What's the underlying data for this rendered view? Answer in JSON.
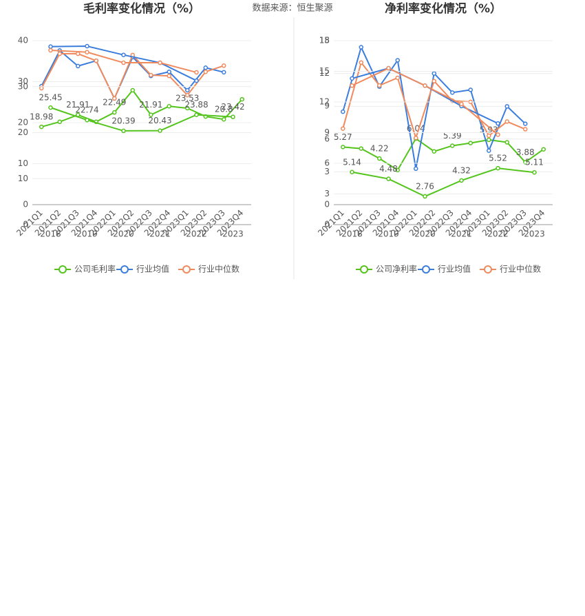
{
  "source": "数据来源：恒生聚源",
  "chart_data": [
    {
      "type": "line",
      "title": "毛利率变化情况（%）",
      "layers": [
        {
          "categories": [
            "2021Q1",
            "2021Q2",
            "2021Q3",
            "2021Q4",
            "2022Q1",
            "2022Q2",
            "2022Q3",
            "2022Q4",
            "2023Q1",
            "2023Q2",
            "2023Q3",
            "2023Q4"
          ],
          "ylim": [
            0,
            40
          ],
          "yticks": [
            0,
            10,
            20,
            30
          ],
          "series": [
            {
              "name": "公司毛利率",
              "color": "#52c41a",
              "values": [
                18.98,
                20.2,
                21.91,
                20.2,
                22.49,
                27.9,
                21.91,
                24.0,
                23.53,
                21.5,
                20.8,
                25.7
              ]
            },
            {
              "name": "行业均值",
              "color": "#3b7ddd",
              "values": [
                28.9,
                37.6,
                33.8,
                35.1,
                25.9,
                36.0,
                31.4,
                32.4,
                27.9,
                33.4,
                32.3,
                null
              ]
            },
            {
              "name": "行业中位数",
              "color": "#f08a5d",
              "values": [
                28.4,
                36.8,
                36.8,
                35.1,
                25.9,
                36.5,
                31.6,
                31.4,
                26.7,
                32.4,
                33.9,
                null
              ]
            }
          ]
        },
        {
          "categories": [
            "2018",
            "2019",
            "2020",
            "2021",
            "2022",
            "2023"
          ],
          "ylim": [
            0,
            40
          ],
          "yticks": [
            0,
            10,
            20,
            30,
            40
          ],
          "series": [
            {
              "color": "#52c41a",
              "values": [
                25.45,
                22.74,
                20.39,
                20.43,
                23.88,
                23.42
              ]
            },
            {
              "color": "#3b7ddd",
              "values": [
                38.7,
                38.8,
                36.9,
                35.2,
                31.3,
                null
              ]
            },
            {
              "color": "#f08a5d",
              "values": [
                37.9,
                37.5,
                35.2,
                35.2,
                33.1,
                null
              ]
            }
          ]
        }
      ]
    },
    {
      "type": "line",
      "title": "净利率变化情况（%）",
      "layers": [
        {
          "categories": [
            "2021Q1",
            "2021Q2",
            "2021Q3",
            "2021Q4",
            "2022Q1",
            "2022Q2",
            "2022Q3",
            "2022Q4",
            "2023Q1",
            "2023Q2",
            "2023Q3",
            "2023Q4"
          ],
          "ylim": [
            0,
            15
          ],
          "yticks": [
            0,
            3,
            6,
            9,
            12,
            15
          ],
          "series": [
            {
              "name": "公司净利率",
              "color": "#52c41a",
              "values": [
                5.27,
                5.13,
                4.22,
                3.16,
                6.04,
                4.87,
                5.39,
                5.63,
                5.93,
                5.7,
                3.88,
                5.06
              ]
            },
            {
              "name": "行业均值",
              "color": "#3b7ddd",
              "values": [
                8.5,
                14.4,
                10.8,
                13.2,
                3.29,
                12.0,
                10.25,
                10.5,
                4.94,
                8.99,
                7.4,
                null
              ]
            },
            {
              "name": "行业中位数",
              "color": "#f08a5d",
              "values": [
                6.96,
                13.0,
                10.9,
                11.6,
                6.1,
                11.3,
                9.5,
                9.4,
                6.3,
                7.6,
                6.9,
                null
              ]
            }
          ]
        },
        {
          "categories": [
            "2018",
            "2019",
            "2020",
            "2021",
            "2022",
            "2023"
          ],
          "ylim": [
            0,
            18
          ],
          "yticks": [
            0,
            3,
            6,
            9,
            12,
            15,
            18
          ],
          "series": [
            {
              "color": "#52c41a",
              "values": [
                5.14,
                4.48,
                2.76,
                4.32,
                5.52,
                5.11
              ]
            },
            {
              "color": "#3b7ddd",
              "values": [
                14.3,
                15.3,
                13.6,
                11.6,
                9.9,
                null
              ]
            },
            {
              "color": "#f08a5d",
              "values": [
                13.6,
                15.3,
                13.6,
                11.8,
                8.8,
                null
              ]
            }
          ]
        }
      ]
    }
  ]
}
